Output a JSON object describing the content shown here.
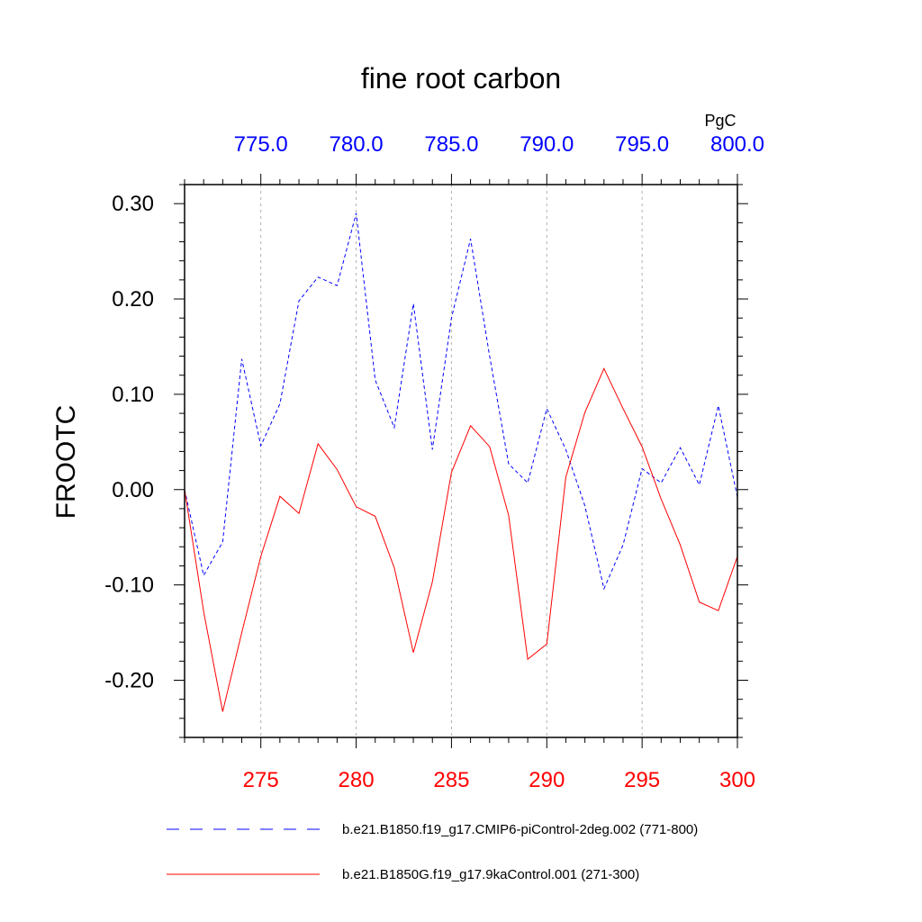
{
  "chart_data": {
    "type": "line",
    "title": "fine root carbon",
    "units": "PgC",
    "ylabel": "FROOTC",
    "ylim": [
      -0.26,
      0.32
    ],
    "y_ticks": [
      {
        "value": 0.3,
        "label": "0.30"
      },
      {
        "value": 0.2,
        "label": "0.20"
      },
      {
        "value": 0.1,
        "label": "0.10"
      },
      {
        "value": 0.0,
        "label": "0.00"
      },
      {
        "value": -0.1,
        "label": "-0.10"
      },
      {
        "value": -0.2,
        "label": "-0.20"
      }
    ],
    "y_minor_step": 0.02,
    "x_bottom": {
      "range": [
        271,
        300
      ],
      "color": "#ff0000",
      "ticks": [
        {
          "value": 275,
          "label": "275"
        },
        {
          "value": 280,
          "label": "280"
        },
        {
          "value": 285,
          "label": "285"
        },
        {
          "value": 290,
          "label": "290"
        },
        {
          "value": 295,
          "label": "295"
        },
        {
          "value": 300,
          "label": "300"
        }
      ]
    },
    "x_top": {
      "range": [
        771,
        800
      ],
      "color": "#0000ff",
      "ticks": [
        {
          "value": 775,
          "label": "775.0"
        },
        {
          "value": 780,
          "label": "780.0"
        },
        {
          "value": 785,
          "label": "785.0"
        },
        {
          "value": 790,
          "label": "790.0"
        },
        {
          "value": 795,
          "label": "795.0"
        },
        {
          "value": 800,
          "label": "800.0"
        }
      ]
    },
    "grid": "vertical dashed at major ticks",
    "series": [
      {
        "name": "b.e21.B1850.f19_g17.CMIP6-piControl-2deg.002 (771-800)",
        "axis": "top",
        "color": "#0000ff",
        "dash": "dashed",
        "x": [
          771,
          772,
          773,
          774,
          775,
          776,
          777,
          778,
          779,
          780,
          781,
          782,
          783,
          784,
          785,
          786,
          787,
          788,
          789,
          790,
          791,
          792,
          793,
          794,
          795,
          796,
          797,
          798,
          799,
          800
        ],
        "values": [
          0.0,
          -0.09,
          -0.055,
          0.137,
          0.046,
          0.09,
          0.198,
          0.223,
          0.214,
          0.29,
          0.115,
          0.065,
          0.195,
          0.042,
          0.18,
          0.263,
          0.14,
          0.027,
          0.007,
          0.085,
          0.042,
          -0.017,
          -0.104,
          -0.058,
          0.022,
          0.007,
          0.044,
          0.005,
          0.088,
          -0.008
        ]
      },
      {
        "name": "b.e21.B1850G.f19_g17.9kaControl.001 (271-300)",
        "axis": "bottom",
        "color": "#ff0000",
        "dash": "solid",
        "x": [
          271,
          272,
          273,
          274,
          275,
          276,
          277,
          278,
          279,
          280,
          281,
          282,
          283,
          284,
          285,
          286,
          287,
          288,
          289,
          290,
          291,
          292,
          293,
          294,
          295,
          296,
          297,
          298,
          299,
          300
        ],
        "values": [
          0.0,
          -0.128,
          -0.233,
          -0.15,
          -0.07,
          -0.007,
          -0.025,
          0.048,
          0.021,
          -0.018,
          -0.028,
          -0.082,
          -0.171,
          -0.097,
          0.018,
          0.067,
          0.045,
          -0.027,
          -0.178,
          -0.162,
          0.013,
          0.081,
          0.127,
          0.085,
          0.045,
          -0.01,
          -0.058,
          -0.118,
          -0.127,
          -0.07
        ]
      }
    ]
  }
}
